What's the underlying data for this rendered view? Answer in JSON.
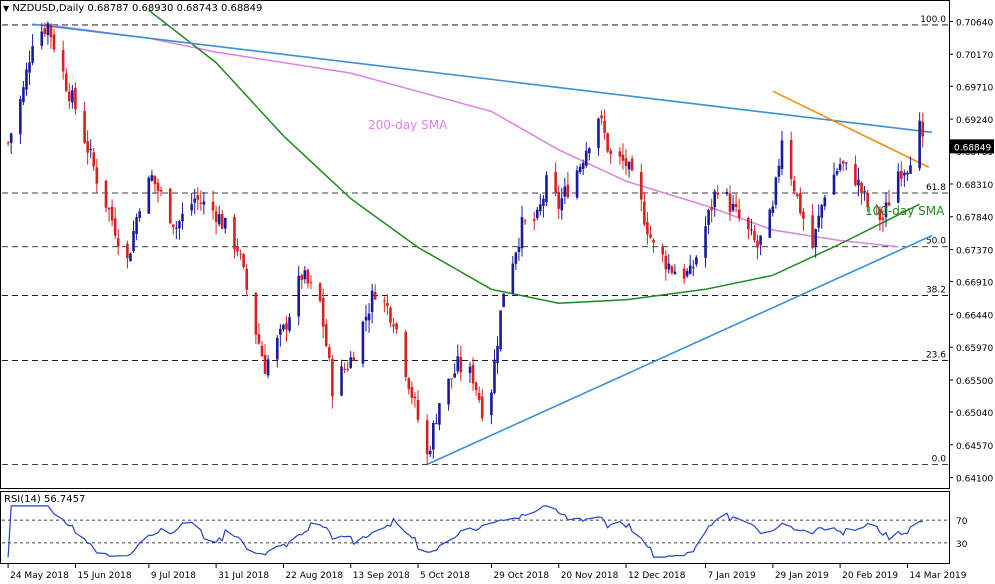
{
  "header": {
    "symbol": "NZDUSD,Daily",
    "ohlc": "0.68787 0.68930 0.68743 0.68849",
    "rsi_label": "RSI(14) 56.7457"
  },
  "colors": {
    "bull": "#1a1aa0",
    "bear": "#d92020",
    "sma200": "#e080e0",
    "sma100": "#1e8a1e",
    "trend_blue": "#3a8fd8",
    "trend_orange": "#f0901a",
    "rsi": "#2244cc"
  },
  "chart_data": {
    "type": "candlestick",
    "symbol": "NZDUSD",
    "timeframe": "Daily",
    "y_axis": {
      "range": [
        0.6398,
        0.7089
      ],
      "ticks": [
        "0.70640",
        "0.70170",
        "0.69710",
        "0.69240",
        "0.68780",
        "0.68310",
        "0.67840",
        "0.67370",
        "0.66910",
        "0.66440",
        "0.65970",
        "0.65500",
        "0.65040",
        "0.64570",
        "0.64100"
      ],
      "current_price": "0.68849"
    },
    "x_axis": {
      "labels": [
        "24 May 2018",
        "15 Jun 2018",
        "9 Jul 2018",
        "31 Jul 2018",
        "22 Aug 2018",
        "13 Sep 2018",
        "5 Oct 2018",
        "29 Oct 2018",
        "20 Nov 2018",
        "12 Dec 2018",
        "7 Jan 2019",
        "29 Jan 2019",
        "20 Feb 2019",
        "14 Mar 2019"
      ]
    },
    "fibonacci": [
      {
        "label": "100.0",
        "price": 0.7059
      },
      {
        "label": "61.8",
        "price": 0.6818
      },
      {
        "label": "50.0",
        "price": 0.6741
      },
      {
        "label": "38.2",
        "price": 0.6671
      },
      {
        "label": "23.6",
        "price": 0.6578
      },
      {
        "label": "0.0",
        "price": 0.6429
      }
    ],
    "annotations": [
      "200-day SMA",
      "100-day SMA"
    ],
    "rsi": {
      "name": "RSI(14)",
      "value": 56.7457,
      "levels": [
        70,
        30
      ],
      "axis_labels": [
        "70",
        "30"
      ]
    },
    "anchors": [
      {
        "date": "24 May 2018",
        "price": 0.689
      },
      {
        "date": "29 May 2018",
        "price": 0.6965
      },
      {
        "date": "1 Jun 2018",
        "price": 0.704
      },
      {
        "date": "6 Jun 2018",
        "price": 0.706
      },
      {
        "date": "12 Jun 2018",
        "price": 0.6975
      },
      {
        "date": "15 Jun 2018",
        "price": 0.694
      },
      {
        "date": "22 Jun 2018",
        "price": 0.684
      },
      {
        "date": "2 Jul 2018",
        "price": 0.672
      },
      {
        "date": "6 Jul 2018",
        "price": 0.6805
      },
      {
        "date": "10 Jul 2018",
        "price": 0.684
      },
      {
        "date": "18 Jul 2018",
        "price": 0.677
      },
      {
        "date": "24 Jul 2018",
        "price": 0.681
      },
      {
        "date": "31 Jul 2018",
        "price": 0.679
      },
      {
        "date": "7 Aug 2018",
        "price": 0.674
      },
      {
        "date": "13 Aug 2018",
        "price": 0.662
      },
      {
        "date": "16 Aug 2018",
        "price": 0.657
      },
      {
        "date": "22 Aug 2018",
        "price": 0.662
      },
      {
        "date": "28 Aug 2018",
        "price": 0.67
      },
      {
        "date": "3 Sep 2018",
        "price": 0.666
      },
      {
        "date": "7 Sep 2018",
        "price": 0.654
      },
      {
        "date": "13 Sep 2018",
        "price": 0.658
      },
      {
        "date": "21 Sep 2018",
        "price": 0.668
      },
      {
        "date": "27 Sep 2018",
        "price": 0.664
      },
      {
        "date": "3 Oct 2018",
        "price": 0.653
      },
      {
        "date": "8 Oct 2018",
        "price": 0.644
      },
      {
        "date": "12 Oct 2018",
        "price": 0.652
      },
      {
        "date": "18 Oct 2018",
        "price": 0.657
      },
      {
        "date": "23 Oct 2018",
        "price": 0.6555
      },
      {
        "date": "26 Oct 2018",
        "price": 0.651
      },
      {
        "date": "29 Oct 2018",
        "price": 0.654
      },
      {
        "date": "2 Nov 2018",
        "price": 0.668
      },
      {
        "date": "8 Nov 2018",
        "price": 0.677
      },
      {
        "date": "13 Nov 2018",
        "price": 0.678
      },
      {
        "date": "16 Nov 2018",
        "price": 0.683
      },
      {
        "date": "20 Nov 2018",
        "price": 0.68
      },
      {
        "date": "27 Nov 2018",
        "price": 0.686
      },
      {
        "date": "3 Dec 2018",
        "price": 0.693
      },
      {
        "date": "7 Dec 2018",
        "price": 0.687
      },
      {
        "date": "12 Dec 2018",
        "price": 0.686
      },
      {
        "date": "17 Dec 2018",
        "price": 0.68
      },
      {
        "date": "21 Dec 2018",
        "price": 0.674
      },
      {
        "date": "27 Dec 2018",
        "price": 0.671
      },
      {
        "date": "2 Jan 2019",
        "price": 0.67
      },
      {
        "date": "7 Jan 2019",
        "price": 0.677
      },
      {
        "date": "11 Jan 2019",
        "price": 0.683
      },
      {
        "date": "18 Jan 2019",
        "price": 0.678
      },
      {
        "date": "24 Jan 2019",
        "price": 0.674
      },
      {
        "date": "29 Jan 2019",
        "price": 0.679
      },
      {
        "date": "1 Feb 2019",
        "price": 0.69
      },
      {
        "date": "6 Feb 2019",
        "price": 0.681
      },
      {
        "date": "11 Feb 2019",
        "price": 0.674
      },
      {
        "date": "15 Feb 2019",
        "price": 0.682
      },
      {
        "date": "20 Feb 2019",
        "price": 0.686
      },
      {
        "date": "25 Feb 2019",
        "price": 0.684
      },
      {
        "date": "1 Mar 2019",
        "price": 0.68
      },
      {
        "date": "6 Mar 2019",
        "price": 0.678
      },
      {
        "date": "11 Mar 2019",
        "price": 0.685
      },
      {
        "date": "14 Mar 2019",
        "price": 0.686
      },
      {
        "date": "18 Mar 2019",
        "price": 0.691
      },
      {
        "date": "19 Mar 2019",
        "price": 0.6885
      }
    ],
    "sma200_points": [
      {
        "date": "6 Jun 2018",
        "price": 0.7059
      },
      {
        "date": "9 Jul 2018",
        "price": 0.704
      },
      {
        "date": "31 Jul 2018",
        "price": 0.702
      },
      {
        "date": "13 Sep 2018",
        "price": 0.699
      },
      {
        "date": "29 Oct 2018",
        "price": 0.6935
      },
      {
        "date": "20 Nov 2018",
        "price": 0.688
      },
      {
        "date": "12 Dec 2018",
        "price": 0.6835
      },
      {
        "date": "7 Jan 2019",
        "price": 0.68
      },
      {
        "date": "29 Jan 2019",
        "price": 0.6765
      },
      {
        "date": "20 Feb 2019",
        "price": 0.675
      },
      {
        "date": "11 Mar 2019",
        "price": 0.6741
      }
    ],
    "sma100_points": [
      {
        "date": "9 Jul 2018",
        "price": 0.708
      },
      {
        "date": "31 Jul 2018",
        "price": 0.7005
      },
      {
        "date": "22 Aug 2018",
        "price": 0.69
      },
      {
        "date": "13 Sep 2018",
        "price": 0.681
      },
      {
        "date": "5 Oct 2018",
        "price": 0.674
      },
      {
        "date": "29 Oct 2018",
        "price": 0.668
      },
      {
        "date": "20 Nov 2018",
        "price": 0.666
      },
      {
        "date": "12 Dec 2018",
        "price": 0.6665
      },
      {
        "date": "7 Jan 2019",
        "price": 0.668
      },
      {
        "date": "29 Jan 2019",
        "price": 0.67
      },
      {
        "date": "20 Feb 2019",
        "price": 0.6745
      },
      {
        "date": "18 Mar 2019",
        "price": 0.6802
      }
    ],
    "trendlines": [
      {
        "name": "resistance",
        "from": {
          "date": "1 Jun 2018",
          "price": 0.706
        },
        "to": {
          "date": "22 Mar 2019",
          "price": 0.6905
        }
      },
      {
        "name": "support",
        "from": {
          "date": "8 Oct 2018",
          "price": 0.6429
        },
        "to": {
          "date": "22 Mar 2019",
          "price": 0.6757
        }
      },
      {
        "name": "short-term resistance",
        "from": {
          "date": "29 Jan 2019",
          "price": 0.6964
        },
        "to": {
          "date": "21 Mar 2019",
          "price": 0.6855
        }
      }
    ]
  }
}
